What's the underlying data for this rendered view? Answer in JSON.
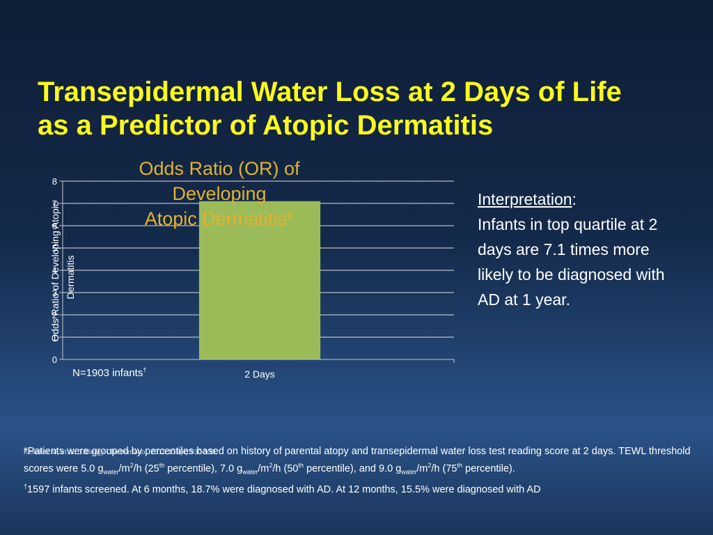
{
  "slide": {
    "title_line1": "Transepidermal Water Loss at 2 Days of Life",
    "title_line2": "as a Predictor of Atopic Dermatitis"
  },
  "chart_data": {
    "type": "bar",
    "title_line1": "Odds Ratio (OR) of Developing",
    "title_line2": "Atopic Dermatitis*",
    "categories": [
      "2 Days"
    ],
    "values": [
      7.1
    ],
    "ylabel_line1": "Odds Ratio of Developing Atopic",
    "ylabel_line2": "Dermatitis",
    "ylim": [
      0,
      8
    ],
    "yticks": [
      "0",
      "1",
      "2",
      "3",
      "4",
      "5",
      "6",
      "7",
      "8"
    ],
    "grid": true,
    "bar_color": "#9bbb59",
    "n_label": "N=1903 infants",
    "n_label_mark": "†"
  },
  "interpretation": {
    "heading": "Interpretation",
    "colon": ":",
    "body": "Infants in top quartile at 2 days are 7.1 times more likely to be diagnosed with AD at 1 year."
  },
  "citation": "Kelleher M, et al. J Allergy Clin Immunol. 2015;135(4):930-935.",
  "footnotes": {
    "f1_text1": "*Patients were grouped by percentiles based on history of parental atopy and transepidermal water loss test reading score at 2 days. TEWL threshold scores were 5.0 g",
    "water": "water",
    "unit1": "/m",
    "sq": "2",
    "unit2": "/h (25",
    "th": "th",
    "pct_close": " percentile), 7.0 g",
    "p50": "/h (50",
    "pct_close2": " percentile), and 9.0 g",
    "p75": "/h (75",
    "pct_end": " percentile).",
    "dagger": "†",
    "f2_text": "1597 infants screened. At 6 months, 18.7% were diagnosed with AD. At 12 months, 15.5% were diagnosed with AD"
  }
}
